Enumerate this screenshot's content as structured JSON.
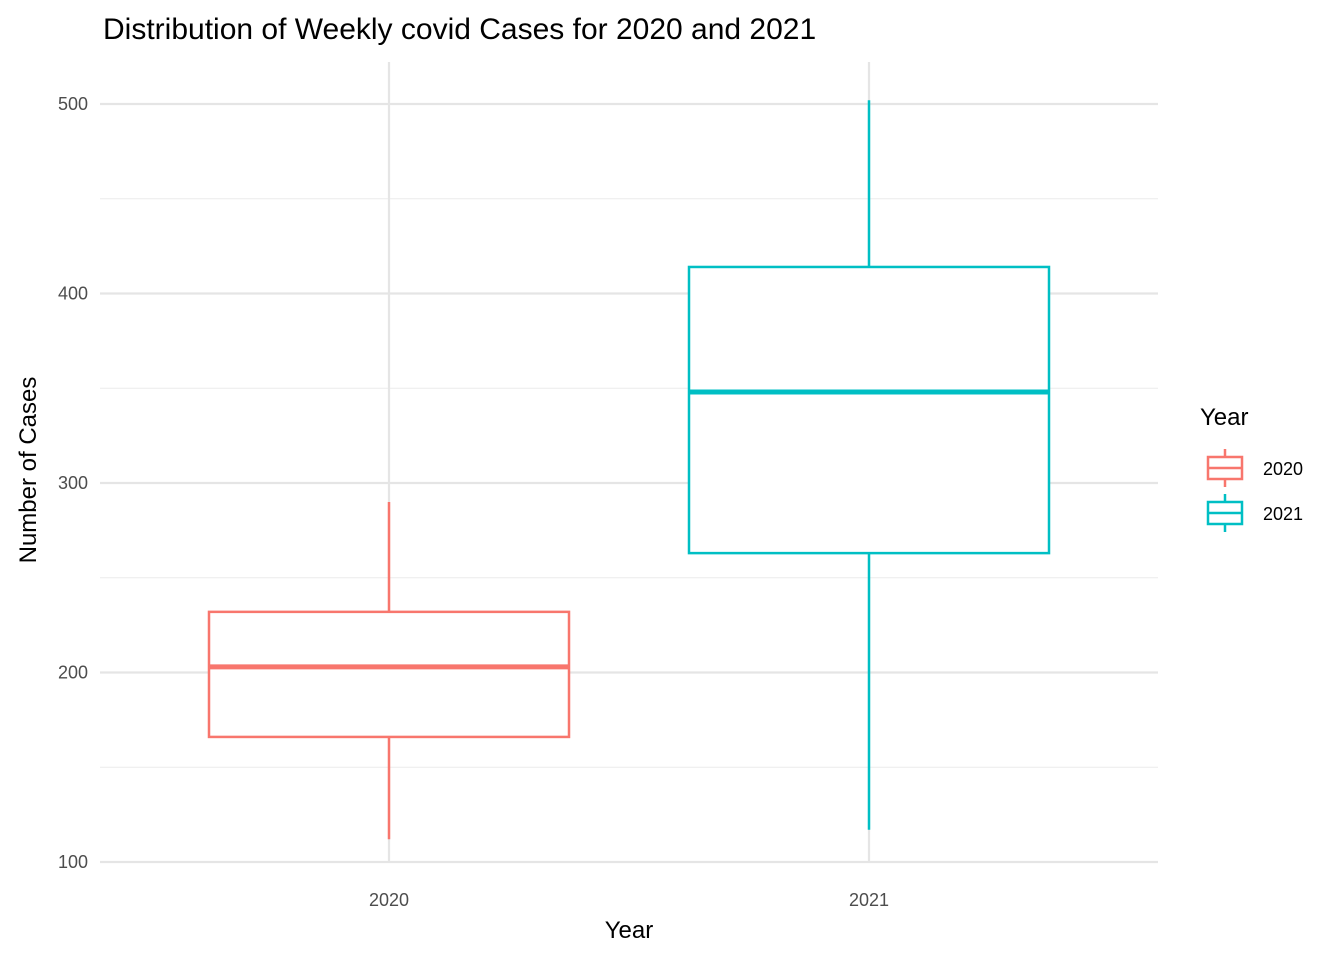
{
  "chart_data": {
    "type": "boxplot",
    "title": "Distribution of Weekly covid Cases for 2020 and 2021",
    "xlabel": "Year",
    "ylabel": "Number of Cases",
    "categories": [
      "2020",
      "2021"
    ],
    "ylim": [
      95,
      517
    ],
    "yticks": [
      100,
      200,
      300,
      400,
      500
    ],
    "grid": true,
    "legend": {
      "title": "Year",
      "position": "right",
      "entries": [
        "2020",
        "2021"
      ]
    },
    "series": [
      {
        "name": "2020",
        "color": "#F8766D",
        "min": 112,
        "q1": 166,
        "median": 203,
        "q3": 232,
        "max": 290
      },
      {
        "name": "2021",
        "color": "#00BFC4",
        "min": 117,
        "q1": 263,
        "median": 348,
        "q3": 414,
        "max": 502
      }
    ]
  }
}
